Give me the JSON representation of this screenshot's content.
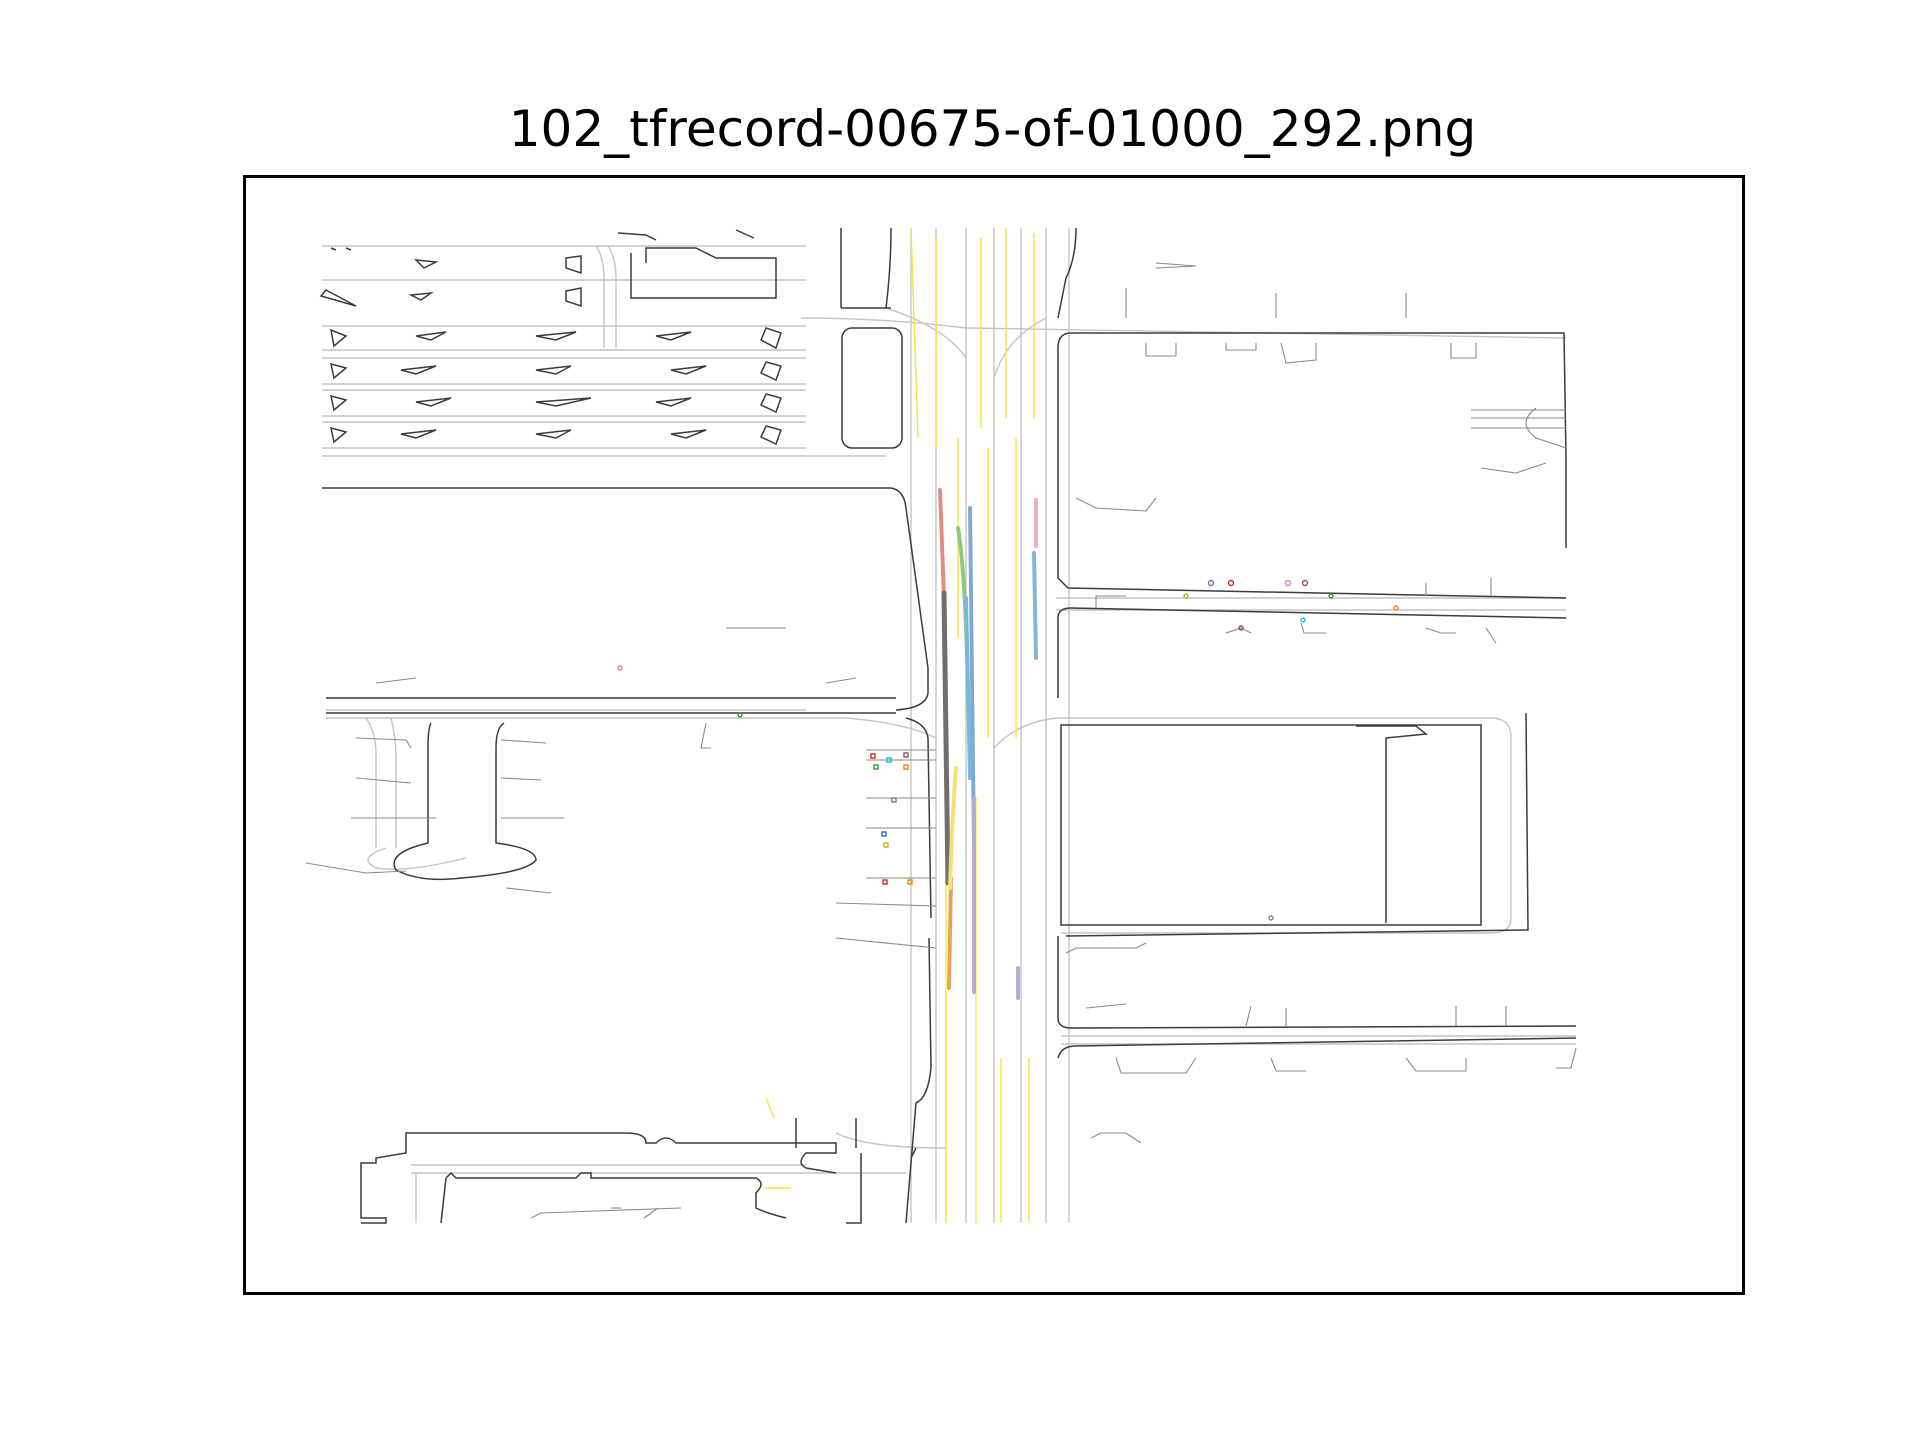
{
  "figure": {
    "title": "102_tfrecord-00675-of-01000_292.png"
  },
  "colors": {
    "background": "#ffffff",
    "frame": "#000000",
    "road_edge": "#333333",
    "lane_center": "#bdbdbd",
    "lane_marking_yellow": "#f2e640",
    "lane_marking_faint": "#c8c8c8"
  },
  "agents": {
    "trajectory_colors": [
      "#e08a8a",
      "#7fa8d8",
      "#8cc97a",
      "#6f6f6f",
      "#78b8d8",
      "#e8b0c0",
      "#b8a8d8",
      "#e8a05c",
      "#f0e27a"
    ],
    "marker_colors": [
      "#d62728",
      "#1f77b4",
      "#2ca02c",
      "#9467bd",
      "#ff7f0e",
      "#17becf",
      "#bcbd22",
      "#e377c2",
      "#8c564b",
      "#7f7f7f"
    ]
  }
}
